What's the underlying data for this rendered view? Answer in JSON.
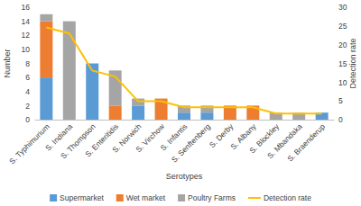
{
  "chart_data": {
    "type": "bar",
    "stacked": true,
    "x_label": "Serotypes",
    "y_label": "Number",
    "y2_label": "Detection rate",
    "categories": [
      "S. Typhimurium",
      "S. Indiana",
      "S. Thompson",
      "S. Enteritidis",
      "S. Norwich",
      "S. Virchow",
      "S. Infantis",
      "S. Senftenberg",
      "S. Derby",
      "S. Albany",
      "S. Blockley",
      "S. Mbandaka",
      "S. Braenderup"
    ],
    "series": [
      {
        "name": "Supermarket",
        "type": "bar",
        "color": "#5b9bd5",
        "values": [
          6,
          0,
          8,
          0,
          2,
          0,
          1,
          1,
          0,
          0,
          0,
          0,
          1
        ]
      },
      {
        "name": "Wet market",
        "type": "bar",
        "color": "#ed7d31",
        "values": [
          8,
          0,
          0,
          2,
          0,
          3,
          0,
          0,
          2,
          2,
          0,
          0,
          0
        ]
      },
      {
        "name": "Poultry Farms",
        "type": "bar",
        "color": "#a5a5a5",
        "values": [
          1,
          14,
          0,
          5,
          1,
          0,
          1,
          1,
          0,
          0,
          1,
          1,
          0
        ]
      },
      {
        "name": "Detection rate",
        "type": "line",
        "axis": "y2",
        "color": "#ffc000",
        "values": [
          24.6,
          23.0,
          13.1,
          11.5,
          4.9,
          4.9,
          3.3,
          3.3,
          3.3,
          3.3,
          1.6,
          1.6,
          1.6
        ]
      }
    ],
    "ylim": [
      0,
      16
    ],
    "yticks": [
      0,
      2,
      4,
      6,
      8,
      10,
      12,
      14,
      16
    ],
    "y2lim": [
      0,
      30
    ],
    "y2ticks": [
      0,
      5,
      10,
      15,
      20,
      25,
      30
    ],
    "grid": false,
    "legend": "bottom"
  }
}
